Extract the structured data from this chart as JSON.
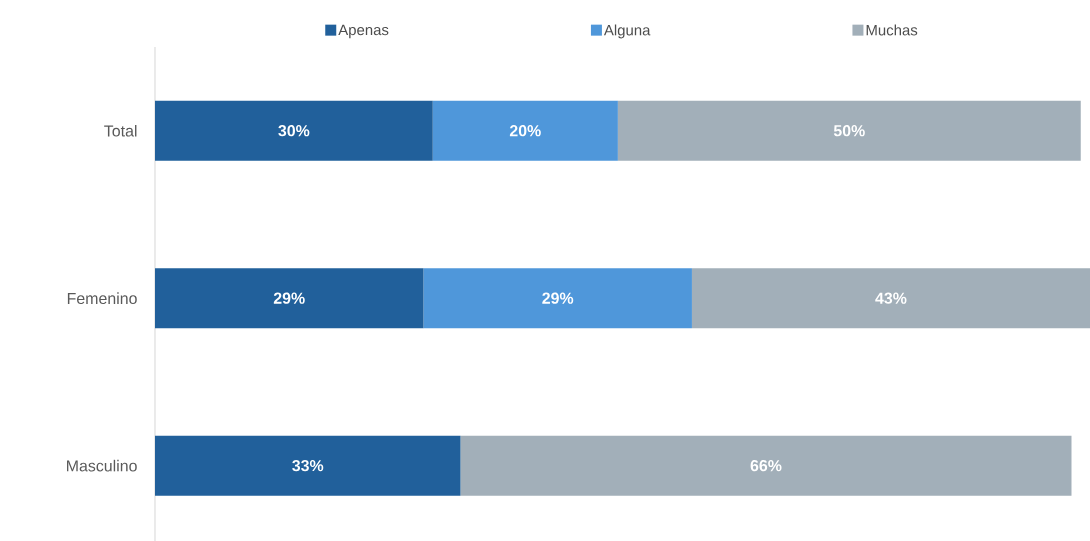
{
  "chart_data": {
    "type": "bar",
    "orientation": "horizontal",
    "stacked": true,
    "legend": "top",
    "categories": [
      "Total",
      "Femenino",
      "Masculino"
    ],
    "series": [
      {
        "name": "Apenas",
        "color": "#21609b",
        "values": [
          30,
          29,
          33
        ],
        "value_labels": [
          "30%",
          "29%",
          "33%"
        ]
      },
      {
        "name": "Alguna",
        "color": "#4f97da",
        "values": [
          20,
          29,
          null
        ],
        "value_labels": [
          "20%",
          "29%",
          null
        ]
      },
      {
        "name": "Muchas",
        "color": "#a2afb9",
        "values": [
          50,
          43,
          66
        ],
        "value_labels": [
          "50%",
          "43%",
          "66%"
        ]
      }
    ]
  }
}
